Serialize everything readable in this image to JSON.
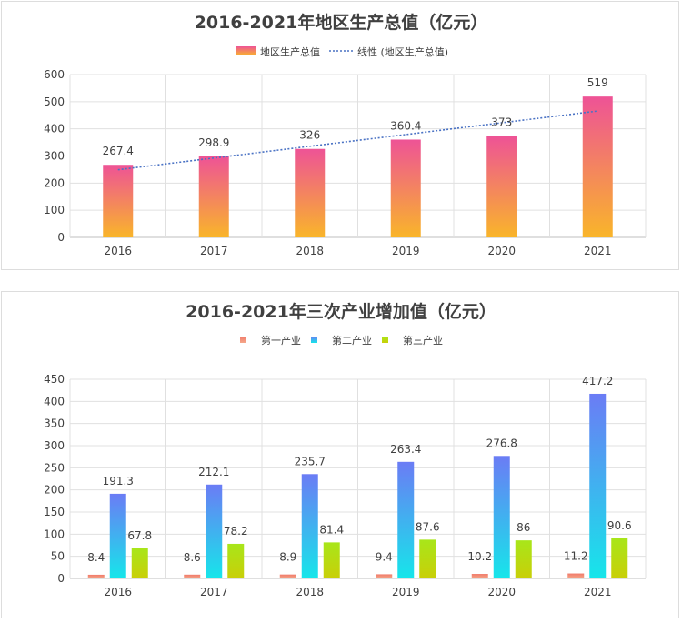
{
  "colors": {
    "gdp_top": "#ee5396",
    "gdp_bottom": "#f9b52a",
    "trend": "#4a72c4",
    "primary_top": "#f07a6a",
    "primary_bottom": "#f5a88a",
    "secondary_top": "#6b7cf5",
    "secondary_bottom": "#16e6ea",
    "tertiary_top": "#a8e61a",
    "tertiary_bottom": "#c9cf08"
  },
  "chart_data": [
    {
      "type": "bar",
      "title": "2016-2021年地区生产总值（亿元）",
      "categories": [
        "2016",
        "2017",
        "2018",
        "2019",
        "2020",
        "2021"
      ],
      "series": [
        {
          "name": "地区生产总值",
          "values": [
            267.4,
            298.9,
            326,
            360.4,
            373,
            519
          ]
        }
      ],
      "trendline": {
        "name": "线性 (地区生产总值)",
        "type": "linear"
      },
      "ylim": [
        0,
        600
      ],
      "yticks": [
        0,
        100,
        200,
        300,
        400,
        500,
        600
      ],
      "grid": true,
      "legend": "top"
    },
    {
      "type": "bar",
      "title": "2016-2021年三次产业增加值（亿元）",
      "categories": [
        "2016",
        "2017",
        "2018",
        "2019",
        "2020",
        "2021"
      ],
      "series": [
        {
          "name": "第一产业",
          "values": [
            8.4,
            8.6,
            8.9,
            9.4,
            10.2,
            11.2
          ]
        },
        {
          "name": "第二产业",
          "values": [
            191.3,
            212.1,
            235.7,
            263.4,
            276.8,
            417.2
          ]
        },
        {
          "name": "第三产业",
          "values": [
            67.8,
            78.2,
            81.4,
            87.6,
            86,
            90.6
          ]
        }
      ],
      "ylim": [
        0,
        450
      ],
      "yticks": [
        0,
        50,
        100,
        150,
        200,
        250,
        300,
        350,
        400,
        450
      ],
      "grid": true,
      "legend": "top"
    }
  ]
}
